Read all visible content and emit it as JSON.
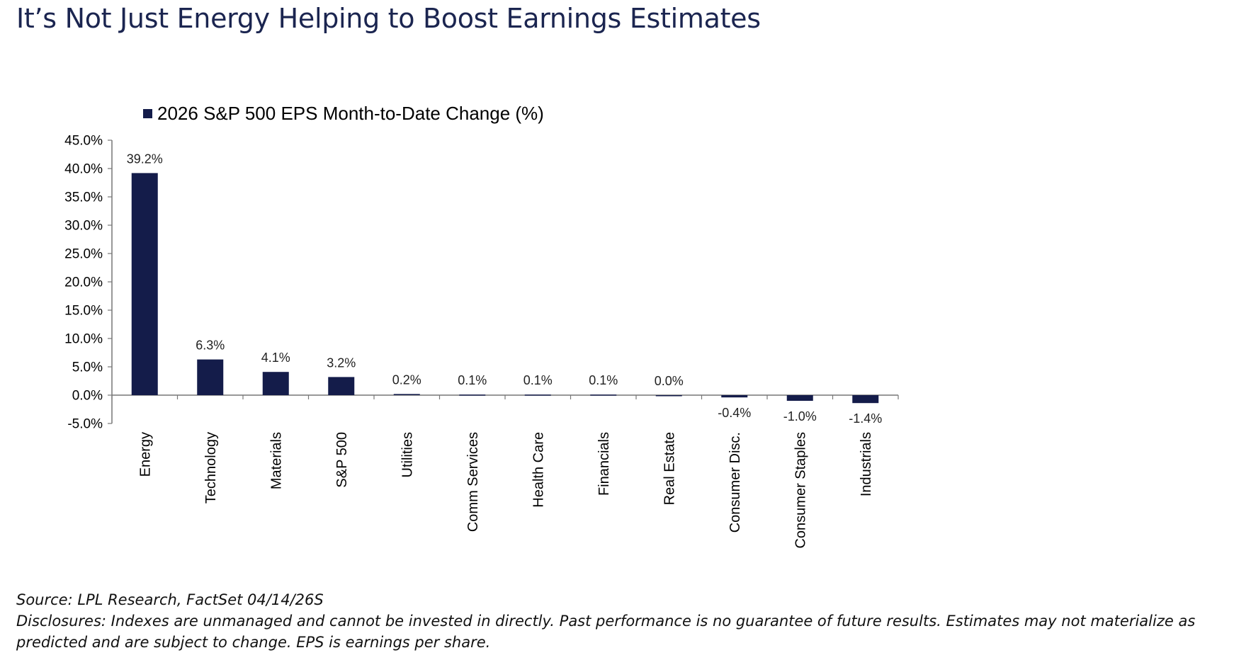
{
  "title": "It’s Not Just Energy Helping to Boost Earnings Estimates",
  "chart_data": {
    "type": "bar",
    "legend": "2026 S&P 500 EPS Month-to-Date Change (%)",
    "legend_position": "top-left",
    "categories": [
      "Energy",
      "Technology",
      "Materials",
      "S&P 500",
      "Utilities",
      "Comm Services",
      "Health Care",
      "Financials",
      "Real Estate",
      "Consumer Disc.",
      "Consumer Staples",
      "Industrials"
    ],
    "series": [
      {
        "name": "2026 S&P 500 EPS Month-to-Date Change (%)",
        "values": [
          39.2,
          6.3,
          4.1,
          3.2,
          0.2,
          0.1,
          0.1,
          0.1,
          0.0,
          -0.4,
          -1.0,
          -1.4
        ],
        "labels": [
          "39.2%",
          "6.3%",
          "4.1%",
          "3.2%",
          "0.2%",
          "0.1%",
          "0.1%",
          "0.1%",
          "0.0%",
          "-0.4%",
          "-1.0%",
          "-1.4%"
        ]
      }
    ],
    "y_ticks": [
      45,
      40,
      35,
      30,
      25,
      20,
      15,
      10,
      5,
      0,
      -5
    ],
    "y_tick_labels": [
      "45.0%",
      "40.0%",
      "35.0%",
      "30.0%",
      "25.0%",
      "20.0%",
      "15.0%",
      "10.0%",
      "5.0%",
      "0.0%",
      "-5.0%"
    ],
    "ylim": [
      -5,
      45
    ],
    "grid": false,
    "bar_color": "#141c4a"
  },
  "footer": {
    "source": "Source: LPL Research, FactSet 04/14/26S",
    "disclosure_line1": "Disclosures: Indexes are unmanaged and cannot be invested in directly. Past performance is no guarantee of future results. Estimates may not materialize as",
    "disclosure_line2": "predicted and are subject to change. EPS is earnings per share."
  }
}
